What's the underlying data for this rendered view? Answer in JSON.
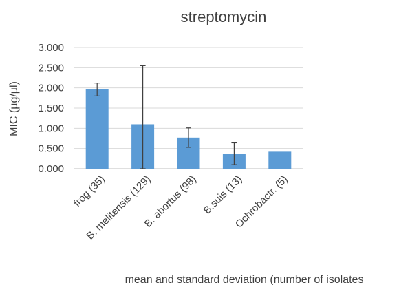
{
  "chart_data": {
    "type": "bar",
    "title": "streptomycin",
    "ylabel": "MIC (µg/µl)",
    "xlabel": "mean and standard deviation (number of isolates",
    "categories": [
      "frog (35)",
      "B. melitensis (129)",
      "B. abortus (98)",
      "B.suis (13)",
      "Ochrobactr. (5)"
    ],
    "series": [
      {
        "values": [
          1.96,
          1.1,
          0.77,
          0.37,
          0.42
        ],
        "error_low": [
          0.16,
          1.1,
          0.24,
          0.27,
          0
        ],
        "error_high": [
          0.16,
          1.45,
          0.24,
          0.27,
          0
        ],
        "color": "#5b9bd5"
      }
    ],
    "ylim": [
      0,
      3
    ],
    "yticks": [
      "0.000",
      "0.500",
      "1.000",
      "1.500",
      "2.000",
      "2.500",
      "3.000"
    ],
    "grid": true,
    "legend": "none"
  }
}
